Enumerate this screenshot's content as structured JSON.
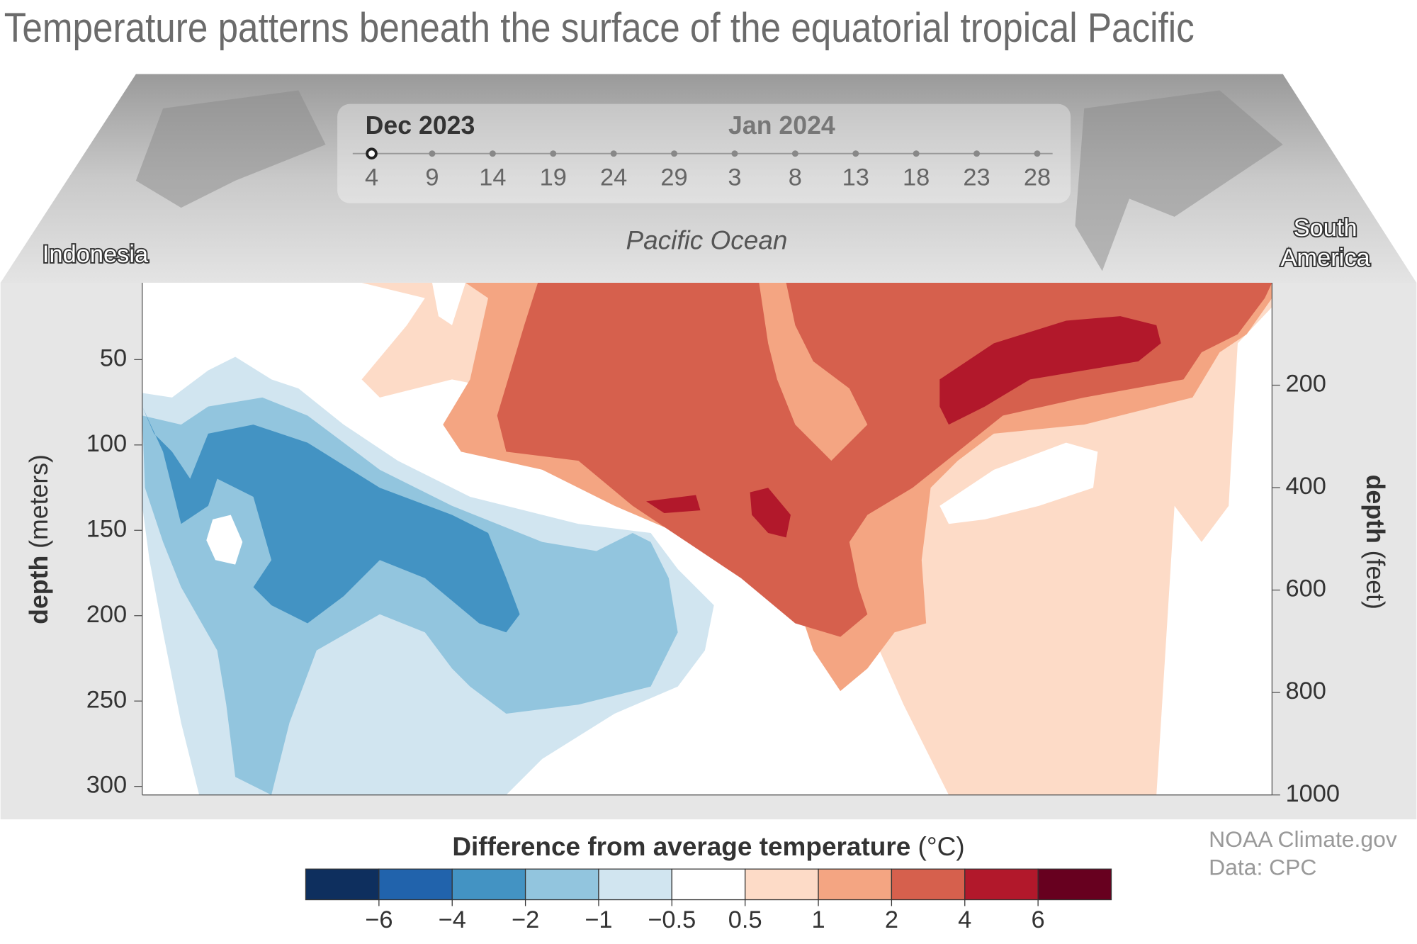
{
  "title": "Temperature patterns beneath the surface of the equatorial tropical Pacific",
  "timeline": {
    "months": [
      "Dec 2023",
      "Jan 2024"
    ],
    "days": [
      4,
      9,
      14,
      19,
      24,
      29,
      3,
      8,
      13,
      18,
      23,
      28
    ]
  },
  "map_labels": {
    "left": "Indonesia",
    "center": "Pacific Ocean",
    "right": [
      "South",
      "America"
    ]
  },
  "chart_data": {
    "type": "contour",
    "ylabel": "depth",
    "ylabel_unit": "(meters)",
    "y2label": "depth",
    "y2label_unit": "(feet)",
    "ylim": [
      5,
      305
    ],
    "yticks": [
      50,
      100,
      150,
      200,
      250,
      300
    ],
    "y2lim": [
      0,
      1000
    ],
    "y2ticks": [
      200,
      400,
      600,
      800,
      1000
    ],
    "colorbar": {
      "title": "Difference from average temperature",
      "unit": "(°C)",
      "colors": [
        "#0e2f5e",
        "#2163ac",
        "#4393c3",
        "#92c5de",
        "#d1e5f0",
        "#ffffff",
        "#fddbc7",
        "#f4a582",
        "#d6604d",
        "#b2182b",
        "#67001f"
      ],
      "ticks": [
        {
          "value": -6,
          "label": "−6"
        },
        {
          "value": -4,
          "label": "−4"
        },
        {
          "value": -2,
          "label": "−2"
        },
        {
          "value": -1,
          "label": "−1"
        },
        {
          "value": -0.5,
          "label": "−0.5"
        },
        0.5,
        1,
        2,
        4,
        6
      ]
    }
  },
  "credits": [
    "NOAA Climate.gov",
    "Data: CPC"
  ]
}
